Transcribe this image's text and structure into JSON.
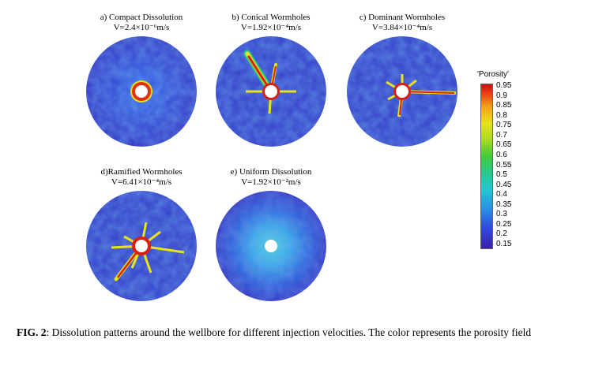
{
  "panels": [
    {
      "label": "a) Compact Dissolution",
      "velocity": "V=2.4×10⁻⁶m/s"
    },
    {
      "label": "b) Conical Wormholes",
      "velocity": "V=1.92×10⁻⁴m/s"
    },
    {
      "label": "c) Dominant Wormholes",
      "velocity": "V=3.84×10⁻⁴m/s"
    },
    {
      "label": "d)Ramified Wormholes",
      "velocity": "V=6.41×10⁻⁴m/s"
    },
    {
      "label": "e) Uniform Dissolution",
      "velocity": "V=1.92×10⁻²m/s"
    }
  ],
  "colorbar": {
    "title": "'Porosity'",
    "ticks": [
      "0.95",
      "0.9",
      "0.85",
      "0.8",
      "0.75",
      "0.7",
      "0.65",
      "0.6",
      "0.55",
      "0.5",
      "0.45",
      "0.4",
      "0.35",
      "0.3",
      "0.25",
      "0.2",
      "0.15"
    ],
    "colors": {
      "low": "#3b1fa8",
      "mid": "#27c88a",
      "high": "#c81010"
    }
  },
  "caption": {
    "label": "FIG. 2",
    "text": ": Dissolution patterns around the wellbore for different injection velocities. The color represents the porosity field"
  }
}
